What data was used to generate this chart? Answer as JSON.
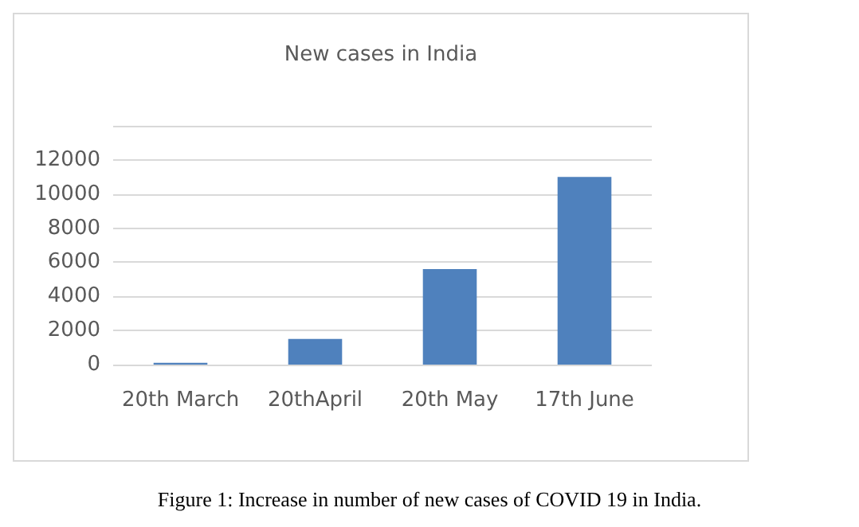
{
  "chart_data": {
    "type": "bar",
    "title": "New cases in India",
    "categories": [
      "20th March",
      "20thApril",
      "20th May",
      "17th June"
    ],
    "values": [
      100,
      1500,
      5600,
      11000
    ],
    "color": "#4f81bd",
    "ylim": [
      0,
      14000
    ],
    "yticks": [
      0,
      2000,
      4000,
      6000,
      8000,
      10000,
      12000,
      {
        "value": 14000,
        "label": null
      }
    ],
    "grid": "y",
    "annotations": [
      "Figure 1: Increase in number of new cases of COVID 19 in India."
    ]
  }
}
